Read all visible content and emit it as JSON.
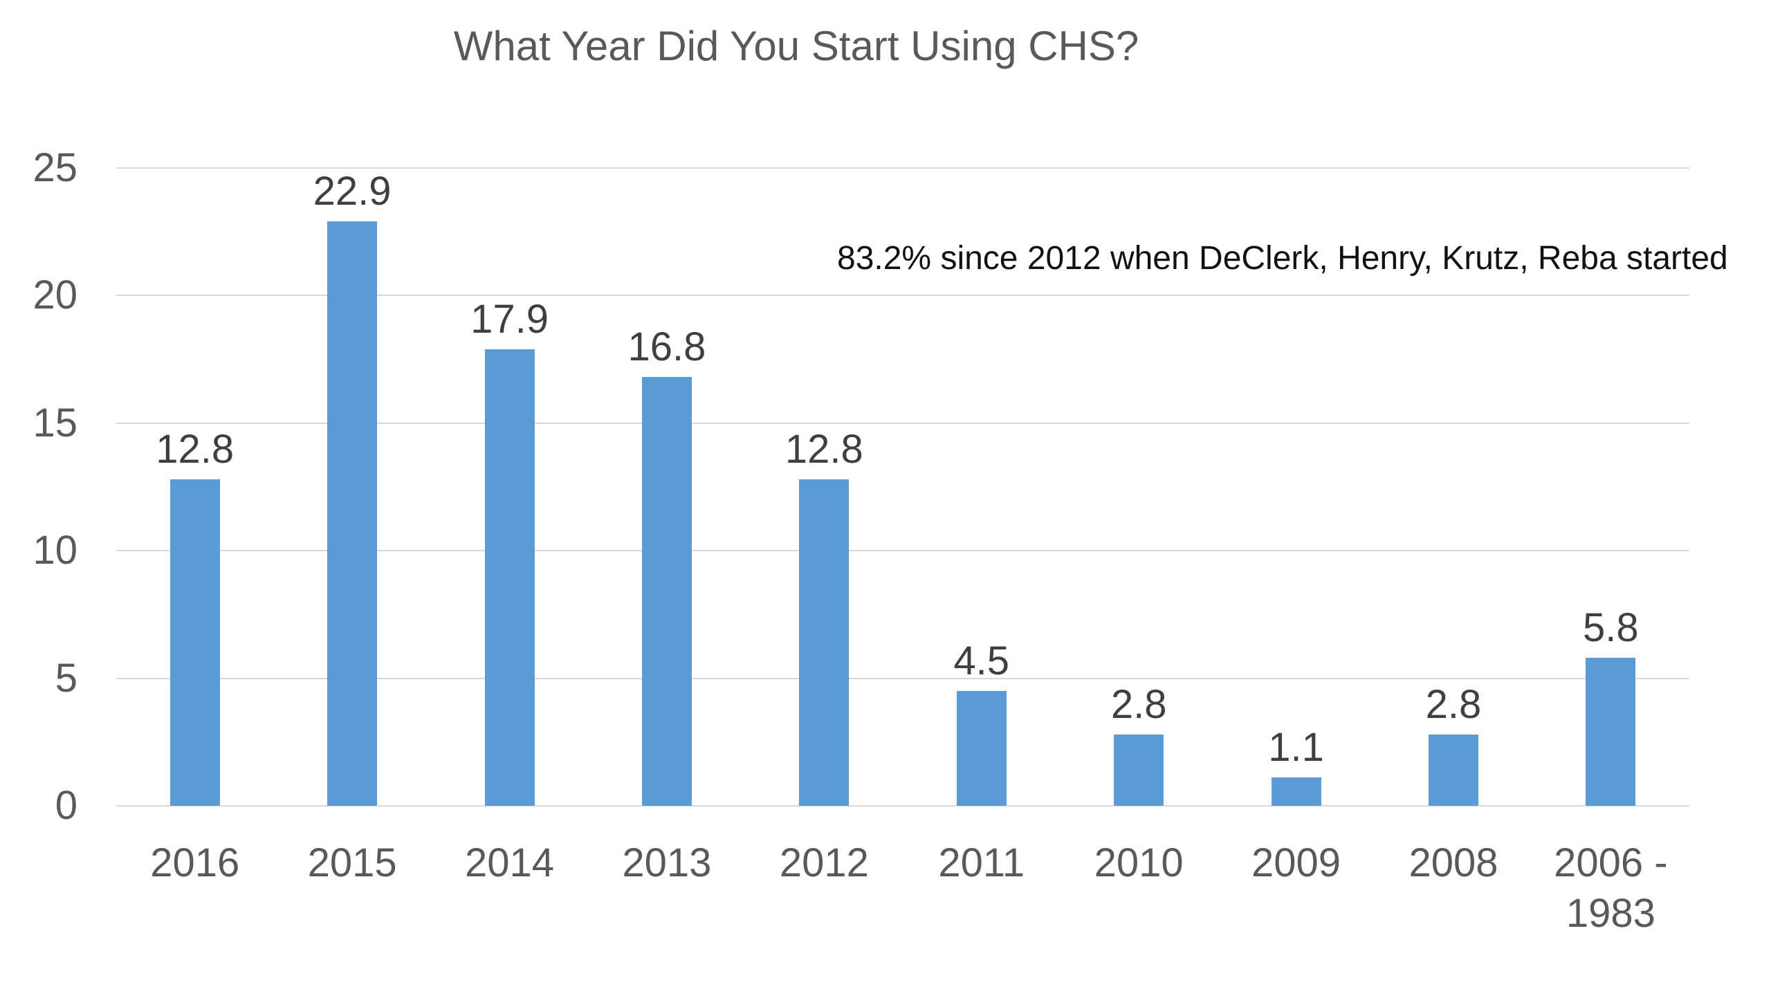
{
  "page": {
    "background": "#ffffff"
  },
  "chart_data": {
    "type": "bar",
    "title": "What Year Did You Start Using CHS?",
    "annotation": "83.2% since 2012 when DeClerk, Henry, Krutz, Reba started",
    "categories": [
      "2016",
      "2015",
      "2014",
      "2013",
      "2012",
      "2011",
      "2010",
      "2009",
      "2008",
      "2006 - 1983"
    ],
    "values": [
      12.8,
      22.9,
      17.9,
      16.8,
      12.8,
      4.5,
      2.8,
      1.1,
      2.8,
      5.8
    ],
    "data_labels": [
      "12.8",
      "22.9",
      "17.9",
      "16.8",
      "12.8",
      "4.5",
      "2.8",
      "1.1",
      "2.8",
      "5.8"
    ],
    "xlabel": "",
    "ylabel": "",
    "y_ticks": [
      0,
      5,
      10,
      15,
      20,
      25
    ],
    "ylim": [
      0,
      25
    ],
    "grid": true,
    "legend": false,
    "data_labels_shown": true,
    "colors": {
      "bar": "#5B9BD5",
      "gridline": "#D9D9D9",
      "title": "#595959",
      "axis_labels": "#595959",
      "data_labels": "#3F3F3F",
      "annotation": "#111111"
    }
  }
}
